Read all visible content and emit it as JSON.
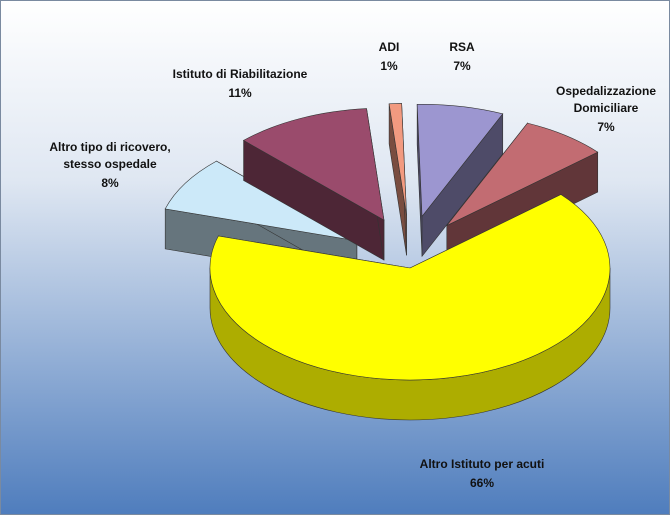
{
  "chart_data": {
    "type": "pie3d",
    "categories": [
      [
        "ADI"
      ],
      [
        "RSA"
      ],
      [
        "Ospedalizzazione",
        "Domiciliare"
      ],
      [
        "Altro Istituto per acuti"
      ],
      [
        "Altro tipo di ricovero,",
        "stesso ospedale"
      ],
      [
        "Istituto di Riabilitazione"
      ]
    ],
    "values": [
      1,
      7,
      7,
      66,
      8,
      11
    ],
    "value_labels": [
      "1%",
      "7%",
      "7%",
      "66%",
      "8%",
      "11%"
    ],
    "colors": [
      "#f29a80",
      "#9c96d0",
      "#c26c72",
      "#ffff00",
      "#cce9f9",
      "#9a4b6c"
    ]
  }
}
